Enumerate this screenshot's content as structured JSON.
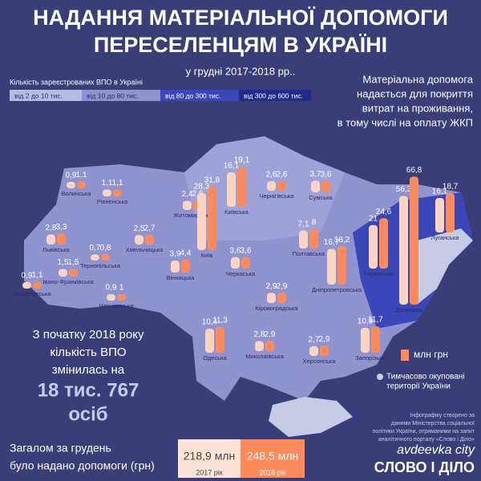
{
  "header": {
    "title_lines": [
      "НАДАННЯ МАТЕРІАЛЬНОЇ ДОПОМОГИ",
      "ПЕРЕСЕЛЕНЦЯМ В УКРАЇНІ"
    ],
    "subtitle": "у грудні 2017-2018 рр.."
  },
  "legend": {
    "title": "Кількість зареєстрованих ВПО в Україні",
    "items": [
      "від 2 до 10 тис.",
      "від 10 до 80 тис.",
      "від 80 до 300 тис.",
      "від 300 до 600 тис."
    ],
    "unit": "млн грн",
    "occupied": [
      "Тимчасово окуповані",
      "території України"
    ]
  },
  "note_lines": [
    "Матеріальна допомога",
    "надається для покриття",
    "витрат на проживання,",
    "в тому числі на оплату ЖКП"
  ],
  "change": {
    "lines": [
      "З початку 2018 року",
      "кількість ВПО",
      "змінилась на"
    ],
    "big_lines": [
      "18 тис. 767",
      "осіб"
    ]
  },
  "totals": {
    "lines": [
      "Загалом за грудень",
      "було надано допомоги (грн)"
    ],
    "items": [
      {
        "amount": "218,9 млн",
        "year": "2017 рік"
      },
      {
        "amount": "248,5 млн",
        "year": "2018 рік"
      }
    ]
  },
  "credit_lines": [
    "Інфографіку створено за",
    "даними Міністерства соціальної",
    "політики України, отриманими на запит",
    "аналітичного порталу «Слово і Діло»"
  ],
  "logo": "СЛОВО І ДІЛО",
  "watermark": "avdeevka city",
  "regions": [
    {
      "name": "Волинська",
      "values": [
        0.9,
        1.1
      ],
      "value_labels": [
        "0,9",
        "1,1"
      ]
    },
    {
      "name": "Рівненська",
      "values": [
        1.1,
        1.1
      ],
      "value_labels": [
        "1,1",
        "1,1"
      ]
    },
    {
      "name": "Житомирська",
      "values": [
        2.4,
        2.6
      ],
      "value_labels": [
        "2,4",
        "2,6"
      ]
    },
    {
      "name": "Київська",
      "values": [
        16.1,
        19.1
      ],
      "value_labels": [
        "16,1",
        "19,1"
      ]
    },
    {
      "name": "Київ",
      "values": [
        28.3,
        31.8
      ],
      "value_labels": [
        "28,3",
        "31,8"
      ]
    },
    {
      "name": "Чернігівська",
      "values": [
        2.6,
        2.6
      ],
      "value_labels": [
        "2,6",
        "2,6"
      ]
    },
    {
      "name": "Сумська",
      "values": [
        3.7,
        3.6
      ],
      "value_labels": [
        "3,7",
        "3,6"
      ]
    },
    {
      "name": "Харківська",
      "values": [
        21,
        24.6
      ],
      "value_labels": [
        "21",
        "24,6"
      ]
    },
    {
      "name": "Луганська",
      "values": [
        16.1,
        18.7
      ],
      "value_labels": [
        "16,1",
        "18,7"
      ]
    },
    {
      "name": "Донецька",
      "values": [
        56.3,
        66.8
      ],
      "value_labels": [
        "56,3",
        "66,8"
      ]
    },
    {
      "name": "Львівська",
      "values": [
        2.8,
        3.3
      ],
      "value_labels": [
        "2,8",
        "3,3"
      ]
    },
    {
      "name": "Тернопільська",
      "values": [
        0.7,
        0.8
      ],
      "value_labels": [
        "0,7",
        "0,8"
      ]
    },
    {
      "name": "Хмельницька",
      "values": [
        2.5,
        2.7
      ],
      "value_labels": [
        "2,5",
        "2,7"
      ]
    },
    {
      "name": "Івано-Франківська",
      "values": [
        1.5,
        1.5
      ],
      "value_labels": [
        "1,5",
        "1,5"
      ]
    },
    {
      "name": "Закарпатська",
      "values": [
        0.9,
        1.1
      ],
      "value_labels": [
        "0,9",
        "1,1"
      ]
    },
    {
      "name": "Чернівецька",
      "values": [
        0.9,
        1
      ],
      "value_labels": [
        "0,9",
        "1"
      ]
    },
    {
      "name": "Вінницька",
      "values": [
        3.9,
        4.4
      ],
      "value_labels": [
        "3,9",
        "4,4"
      ]
    },
    {
      "name": "Черкаська",
      "values": [
        3.6,
        3.6
      ],
      "value_labels": [
        "3,6",
        "3,6"
      ]
    },
    {
      "name": "Полтавська",
      "values": [
        7.1,
        8
      ],
      "value_labels": [
        "7,1",
        "8"
      ]
    },
    {
      "name": "Дніпропетровська",
      "values": [
        16.7,
        18.2
      ],
      "value_labels": [
        "16,7",
        "18,2"
      ]
    },
    {
      "name": "Кіровоградська",
      "values": [
        2.9,
        2.9
      ],
      "value_labels": [
        "2,9",
        "2,9"
      ]
    },
    {
      "name": "Одеська",
      "values": [
        10.4,
        11.3
      ],
      "value_labels": [
        "10,4",
        "11,3"
      ]
    },
    {
      "name": "Миколаївська",
      "values": [
        2.8,
        2.9
      ],
      "value_labels": [
        "2,8",
        "2,9"
      ]
    },
    {
      "name": "Херсонська",
      "values": [
        2.7,
        2.9
      ],
      "value_labels": [
        "2,7",
        "2,9"
      ]
    },
    {
      "name": "Запорізька",
      "values": [
        10.9,
        11.7
      ],
      "value_labels": [
        "10,9",
        "11,7"
      ]
    }
  ]
}
